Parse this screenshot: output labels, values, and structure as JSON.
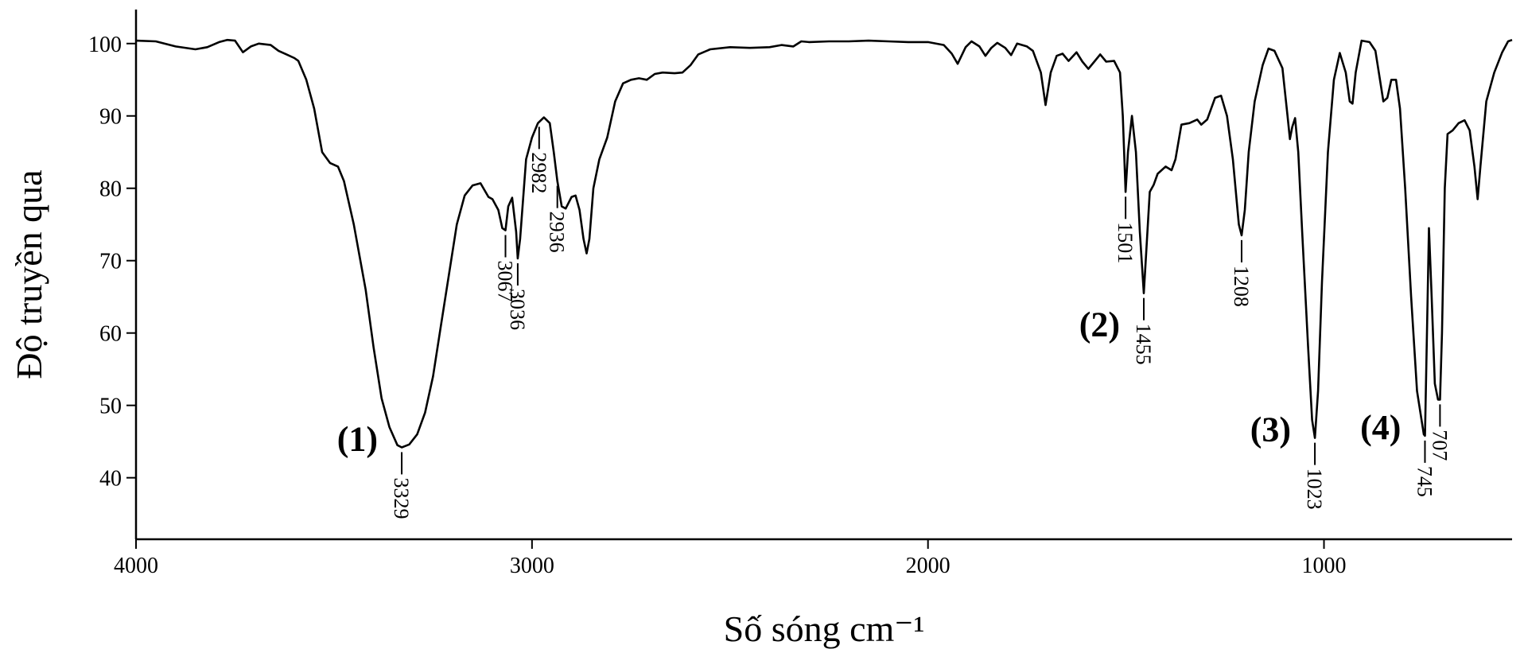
{
  "chart_data": {
    "type": "line",
    "xlabel": "Số sóng cm⁻¹",
    "ylabel": "Độ truyền qua",
    "xlim": [
      4000,
      525
    ],
    "xticks": [
      4000,
      3000,
      2000,
      1000
    ],
    "ylim": [
      31.5,
      104.7
    ],
    "yticks": [
      40,
      50,
      60,
      70,
      80,
      90,
      100
    ],
    "color": "#000000",
    "series": [
      {
        "x": [
          4000,
          3950,
          3900,
          3850,
          3820,
          3790,
          3770,
          3750,
          3730,
          3710,
          3690,
          3660,
          3640,
          3620,
          3600,
          3590,
          3570,
          3550,
          3530,
          3510,
          3490,
          3475,
          3450,
          3420,
          3400,
          3380,
          3360,
          3340,
          3329,
          3310,
          3290,
          3270,
          3250,
          3230,
          3210,
          3190,
          3170,
          3150,
          3130,
          3110,
          3100,
          3085,
          3075,
          3067,
          3060,
          3050,
          3040,
          3036,
          3030,
          3015,
          3000,
          2985,
          2970,
          2955,
          2945,
          2936,
          2925,
          2915,
          2900,
          2890,
          2880,
          2870,
          2862,
          2855,
          2845,
          2830,
          2810,
          2790,
          2770,
          2750,
          2730,
          2710,
          2690,
          2670,
          2640,
          2620,
          2600,
          2580,
          2550,
          2500,
          2450,
          2400,
          2370,
          2340,
          2320,
          2300,
          2250,
          2200,
          2150,
          2100,
          2050,
          2000,
          1960,
          1940,
          1925,
          1905,
          1890,
          1870,
          1855,
          1840,
          1825,
          1805,
          1790,
          1775,
          1750,
          1735,
          1715,
          1703,
          1690,
          1675,
          1660,
          1645,
          1625,
          1610,
          1595,
          1580,
          1565,
          1550,
          1530,
          1515,
          1508,
          1501,
          1495,
          1485,
          1475,
          1465,
          1455,
          1448,
          1440,
          1430,
          1420,
          1400,
          1385,
          1375,
          1360,
          1340,
          1320,
          1310,
          1295,
          1275,
          1260,
          1245,
          1230,
          1215,
          1208,
          1200,
          1190,
          1175,
          1155,
          1140,
          1125,
          1105,
          1092,
          1086,
          1080,
          1073,
          1065,
          1055,
          1040,
          1030,
          1023,
          1015,
          1005,
          990,
          975,
          960,
          945,
          935,
          928,
          920,
          905,
          885,
          870,
          860,
          850,
          840,
          830,
          818,
          808,
          795,
          780,
          765,
          748,
          745,
          740,
          735,
          728,
          720,
          712,
          707,
          702,
          695,
          688,
          675,
          660,
          645,
          632,
          620,
          612,
          605,
          590,
          570,
          550,
          535,
          525
        ],
        "values": [
          100.4,
          100.3,
          99.6,
          99.2,
          99.5,
          100.2,
          100.5,
          100.4,
          98.8,
          99.6,
          100,
          99.8,
          99,
          98.5,
          98,
          97.6,
          95,
          91,
          85,
          83.5,
          83,
          81,
          75,
          66,
          58,
          51,
          47,
          44.5,
          44.2,
          44.6,
          46,
          49,
          54,
          61,
          68,
          75,
          79,
          80.4,
          80.7,
          78.8,
          78.5,
          77,
          74.5,
          74.2,
          77.5,
          78.7,
          74,
          70.3,
          73,
          84,
          87,
          89,
          89.8,
          89,
          85,
          81,
          77.5,
          77.2,
          78.8,
          79,
          77,
          73,
          71,
          73,
          80,
          84,
          87,
          92,
          94.5,
          95,
          95.2,
          95,
          95.8,
          96,
          95.9,
          96,
          97,
          98.5,
          99.2,
          99.5,
          99.4,
          99.5,
          99.8,
          99.6,
          100.3,
          100.2,
          100.3,
          100.3,
          100.4,
          100.3,
          100.2,
          100.2,
          99.8,
          98.6,
          97.2,
          99.5,
          100.3,
          99.6,
          98.3,
          99.4,
          100.1,
          99.4,
          98.4,
          100,
          99.6,
          99,
          96,
          91.5,
          96,
          98.3,
          98.6,
          97.6,
          98.8,
          97.5,
          96.5,
          97.5,
          98.5,
          97.5,
          97.6,
          96,
          90,
          79.5,
          85,
          90,
          85,
          74,
          65.5,
          72,
          79.5,
          80.5,
          82,
          83,
          82.5,
          84,
          88.8,
          89,
          89.5,
          88.8,
          89.5,
          92.5,
          92.8,
          90,
          84,
          75,
          73.5,
          77,
          85,
          92,
          97,
          99.3,
          99,
          96.6,
          90,
          86.8,
          88.5,
          89.7,
          85,
          74,
          58,
          48,
          45.5,
          52,
          67,
          85,
          95,
          98.7,
          96,
          92,
          91.7,
          96,
          100.4,
          100.2,
          99,
          95.5,
          92,
          92.5,
          95,
          95,
          91,
          80,
          65,
          52,
          46,
          45.8,
          60,
          74.5,
          65,
          53,
          50.8,
          50.8,
          60,
          80,
          87.5,
          88,
          89,
          89.4,
          88,
          83,
          78.5,
          83,
          92,
          96,
          98.8,
          100.3,
          100.5
        ]
      }
    ],
    "peaks": [
      3329,
      3067,
      3036,
      2936,
      2982,
      1501,
      1455,
      1208,
      1023,
      745,
      707
    ],
    "annotations": [
      "(1)",
      "(2)",
      "(3)",
      "(4)"
    ]
  }
}
